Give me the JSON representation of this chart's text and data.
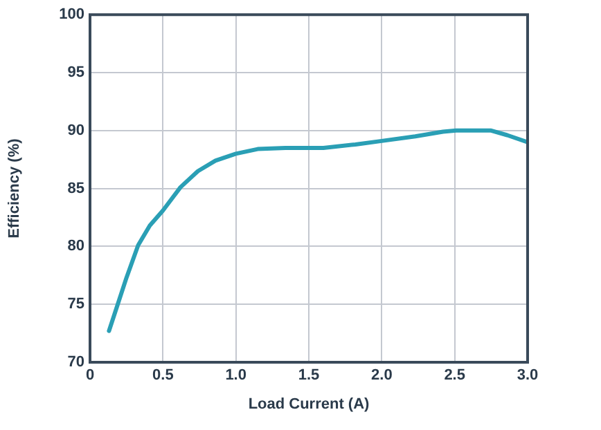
{
  "chart_data": {
    "type": "line",
    "xlabel": "Load Current (A)",
    "ylabel": "Efficiency (%)",
    "x": [
      0.13,
      0.19,
      0.25,
      0.33,
      0.41,
      0.5,
      0.62,
      0.74,
      0.86,
      1.0,
      1.15,
      1.34,
      1.6,
      1.82,
      2.0,
      2.23,
      2.42,
      2.51,
      2.75,
      2.86,
      3.0
    ],
    "series": [
      {
        "color": "#2a9fb5",
        "values": [
          72.7,
          75.0,
          77.3,
          80.1,
          81.8,
          83.1,
          85.1,
          86.5,
          87.4,
          88.0,
          88.4,
          88.5,
          88.5,
          88.8,
          89.1,
          89.5,
          89.9,
          90.0,
          90.0,
          89.6,
          89.0
        ]
      }
    ],
    "xlim": [
      0,
      3
    ],
    "xticks": [
      0,
      0.5,
      {
        "value": 1,
        "label": "1.0"
      },
      1.5,
      {
        "value": 2,
        "label": "2.0"
      },
      2.5,
      {
        "value": 3,
        "label": "3.0"
      }
    ],
    "ylim": [
      70,
      100
    ],
    "yticks": [
      70,
      75,
      80,
      85,
      90,
      95,
      100
    ],
    "grid": true,
    "marker": "none",
    "line_style": "solid",
    "legend": false
  }
}
